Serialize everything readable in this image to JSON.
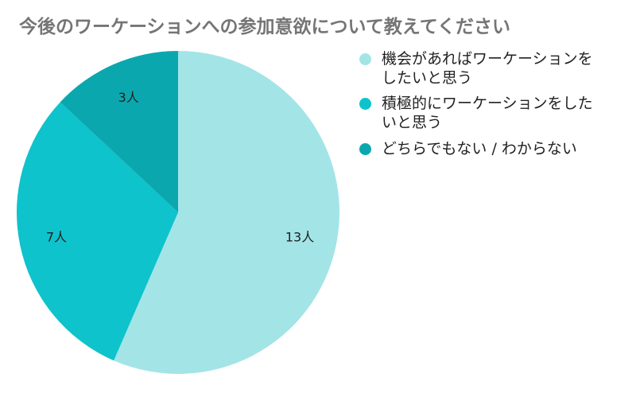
{
  "chart_data": {
    "type": "pie",
    "title": "今後のワーケーションへの参加意欲について教えてください",
    "categories": [
      "機会があればワーケーションをしたいと思う",
      "積極的にワーケーションをしたいと思う",
      "どちらでもない / わからない"
    ],
    "values": [
      13,
      7,
      3
    ],
    "value_labels": [
      "13人",
      "7人",
      "3人"
    ],
    "colors": [
      "#a3e4e7",
      "#0ec3cb",
      "#0aa8ae"
    ],
    "legend": "right"
  }
}
